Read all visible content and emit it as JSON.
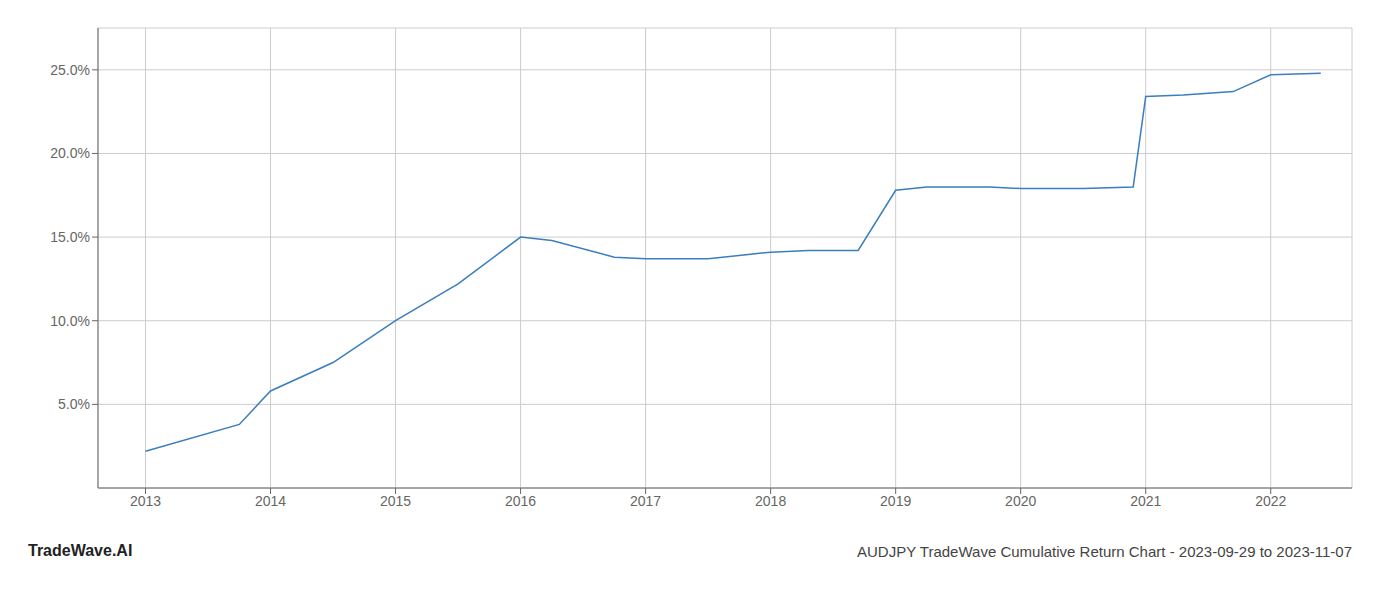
{
  "chart_data": {
    "type": "line",
    "title": "AUDJPY TradeWave Cumulative Return Chart - 2023-09-29 to 2023-11-07",
    "annotations": [
      "TradeWave.AI"
    ],
    "x": [
      2013.0,
      2013.75,
      2014.0,
      2014.5,
      2015.0,
      2015.5,
      2016.0,
      2016.25,
      2016.75,
      2017.0,
      2017.5,
      2018.0,
      2018.3,
      2018.7,
      2019.0,
      2019.25,
      2019.75,
      2020.0,
      2020.5,
      2020.9,
      2021.0,
      2021.3,
      2021.7,
      2022.0,
      2022.4
    ],
    "values": [
      0.022,
      0.038,
      0.058,
      0.075,
      0.1,
      0.122,
      0.15,
      0.148,
      0.138,
      0.137,
      0.137,
      0.141,
      0.142,
      0.142,
      0.178,
      0.18,
      0.18,
      0.179,
      0.179,
      0.18,
      0.234,
      0.235,
      0.237,
      0.247,
      0.248
    ],
    "color": "#3a7ebf",
    "xlim": [
      2012.62,
      2022.65
    ],
    "xticks": [
      2013,
      2014,
      2015,
      2016,
      2017,
      2018,
      2019,
      2020,
      2021,
      2022
    ],
    "ylim": [
      0.0,
      0.275
    ],
    "yticks": [
      {
        "value": 0.05,
        "label": "5.0%"
      },
      {
        "value": 0.1,
        "label": "10.0%"
      },
      {
        "value": 0.15,
        "label": "15.0%"
      },
      {
        "value": 0.2,
        "label": "20.0%"
      },
      {
        "value": 0.25,
        "label": "25.0%"
      }
    ],
    "grid": true
  }
}
